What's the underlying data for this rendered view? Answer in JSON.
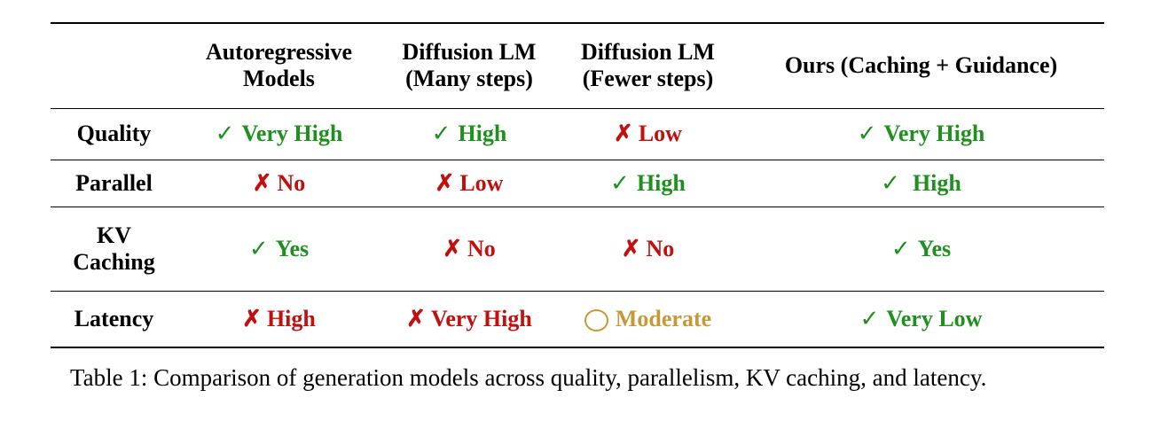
{
  "table": {
    "columns": [
      {
        "line1": "",
        "line2": ""
      },
      {
        "line1": "Autoregressive",
        "line2": "Models"
      },
      {
        "line1": "Diffusion LM",
        "line2": "(Many steps)"
      },
      {
        "line1": "Diffusion LM",
        "line2": "(Fewer steps)"
      },
      {
        "line1": "Ours (Caching + Guidance)",
        "line2": ""
      }
    ],
    "rows": [
      {
        "label_line1": "Quality",
        "label_line2": "",
        "cells": [
          {
            "symbol": "✓",
            "text": "Very High",
            "status": "good"
          },
          {
            "symbol": "✓",
            "text": "High",
            "status": "good"
          },
          {
            "symbol": "✗",
            "text": "Low",
            "status": "bad"
          },
          {
            "symbol": "✓",
            "text": "Very High",
            "status": "good"
          }
        ]
      },
      {
        "label_line1": "Parallel",
        "label_line2": "",
        "cells": [
          {
            "symbol": "✗",
            "text": "No",
            "status": "bad"
          },
          {
            "symbol": "✗",
            "text": "Low",
            "status": "bad"
          },
          {
            "symbol": "✓",
            "text": "High",
            "status": "good"
          },
          {
            "symbol": "✓",
            "text": "High",
            "status": "good"
          }
        ]
      },
      {
        "label_line1": "KV",
        "label_line2": "Caching",
        "cells": [
          {
            "symbol": "✓",
            "text": "Yes",
            "status": "good"
          },
          {
            "symbol": "✗",
            "text": "No",
            "status": "bad"
          },
          {
            "symbol": "✗",
            "text": "No",
            "status": "bad"
          },
          {
            "symbol": "✓",
            "text": "Yes",
            "status": "good"
          }
        ]
      },
      {
        "label_line1": "Latency",
        "label_line2": "",
        "cells": [
          {
            "symbol": "✗",
            "text": "High",
            "status": "bad"
          },
          {
            "symbol": "✗",
            "text": "Very High",
            "status": "bad"
          },
          {
            "symbol": "◯",
            "text": "Moderate",
            "status": "mid"
          },
          {
            "symbol": "✓",
            "text": "Very Low",
            "status": "good"
          }
        ]
      }
    ]
  },
  "caption": "Table 1: Comparison of generation models across quality, parallelism, KV caching, and latency.",
  "colors": {
    "good": "#1f8f1f",
    "bad": "#c01010",
    "mid": "#c4993a"
  }
}
